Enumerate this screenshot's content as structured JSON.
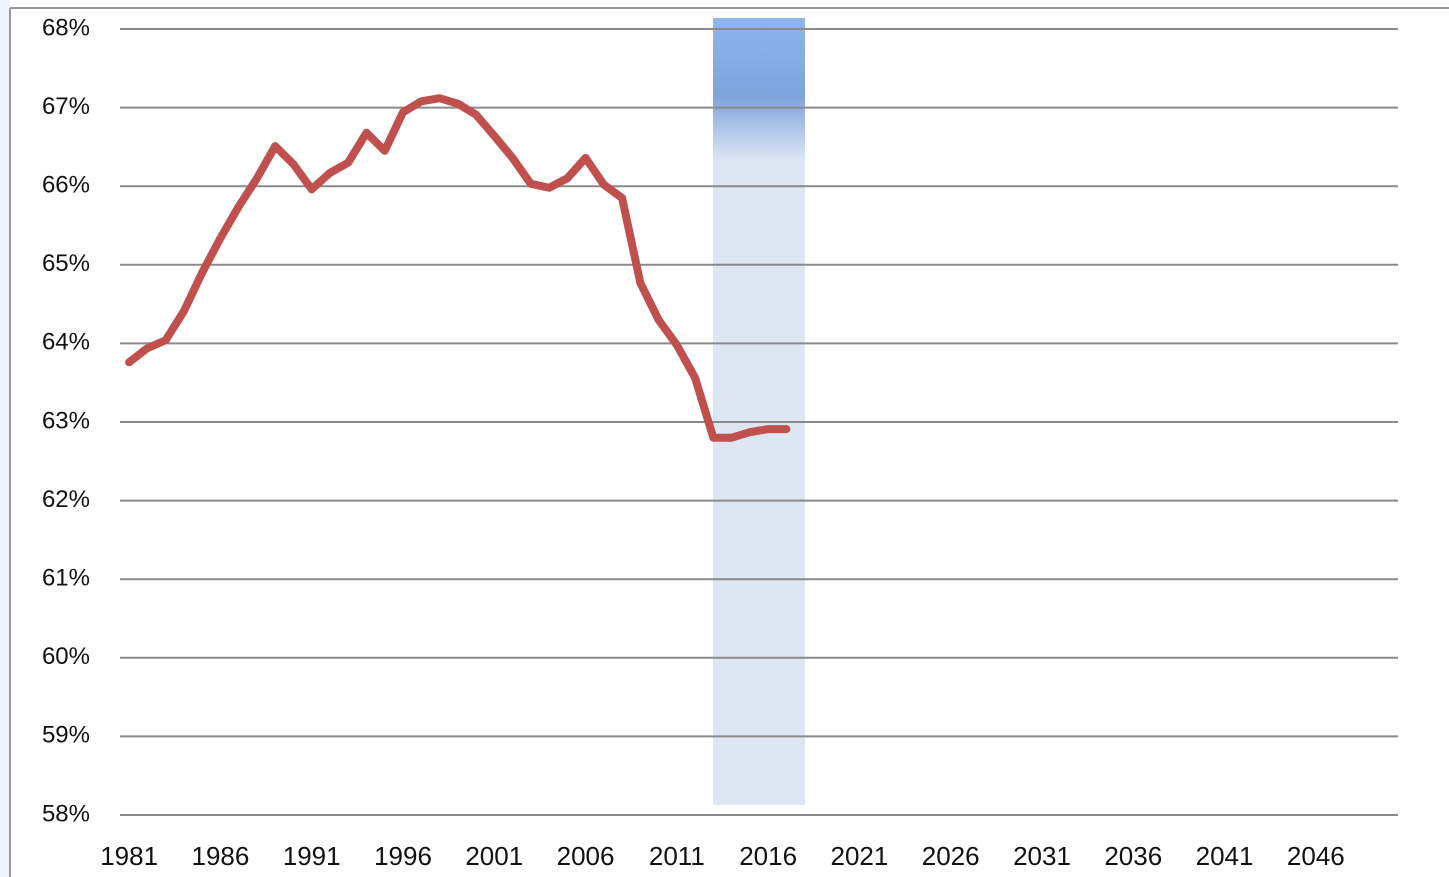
{
  "chart_data": {
    "type": "line",
    "x": [
      1981,
      1982,
      1983,
      1984,
      1985,
      1986,
      1987,
      1988,
      1989,
      1990,
      1991,
      1992,
      1993,
      1994,
      1995,
      1996,
      1997,
      1998,
      1999,
      2000,
      2001,
      2002,
      2003,
      2004,
      2005,
      2006,
      2007,
      2008,
      2009,
      2010,
      2011,
      2012,
      2013,
      2014,
      2015,
      2016,
      2017
    ],
    "series": [
      {
        "color": "#c0504d",
        "values": [
          63.76,
          63.94,
          64.04,
          64.41,
          64.9,
          65.34,
          65.74,
          66.1,
          66.51,
          66.28,
          65.96,
          66.17,
          66.3,
          66.68,
          66.45,
          66.94,
          67.08,
          67.12,
          67.05,
          66.91,
          66.64,
          66.36,
          66.03,
          65.98,
          66.1,
          66.36,
          66.02,
          65.85,
          64.77,
          64.3,
          63.98,
          63.56,
          62.8,
          62.8,
          62.87,
          62.91,
          62.91
        ]
      }
    ],
    "xlim": [
      1980.5,
      2050.5
    ],
    "xticks": [
      1981,
      1986,
      1991,
      1996,
      2001,
      2006,
      2011,
      2016,
      2021,
      2026,
      2031,
      2036,
      2041,
      2046
    ],
    "ylim": [
      58,
      68
    ],
    "yticks": [
      {
        "value": 58,
        "label": "58%"
      },
      {
        "value": 59,
        "label": "59%"
      },
      {
        "value": 60,
        "label": "60%"
      },
      {
        "value": 61,
        "label": "61%"
      },
      {
        "value": 62,
        "label": "62%"
      },
      {
        "value": 63,
        "label": "63%"
      },
      {
        "value": 64,
        "label": "64%"
      },
      {
        "value": 65,
        "label": "65%"
      },
      {
        "value": 66,
        "label": "66%"
      },
      {
        "value": 67,
        "label": "67%"
      },
      {
        "value": 68,
        "label": "68%"
      }
    ],
    "grid": true
  }
}
